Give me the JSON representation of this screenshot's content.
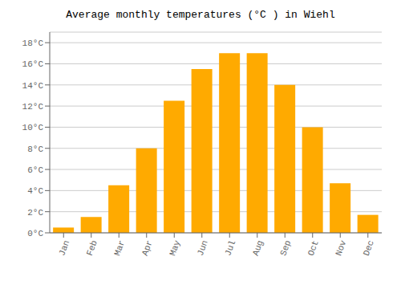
{
  "chart_data": {
    "type": "bar",
    "title": "Average monthly temperatures (°C ) in Wiehl",
    "categories": [
      "Jan",
      "Feb",
      "Mar",
      "Apr",
      "May",
      "Jun",
      "Jul",
      "Aug",
      "Sep",
      "Oct",
      "Nov",
      "Dec"
    ],
    "values": [
      0.5,
      1.5,
      4.5,
      8.0,
      12.5,
      15.5,
      17.0,
      17.0,
      14.0,
      10.0,
      4.7,
      1.7
    ],
    "color": "#FFAA00",
    "ylim": [
      0,
      19
    ],
    "yticks": [
      {
        "value": 0,
        "label": "0°C"
      },
      {
        "value": 2,
        "label": "2°C"
      },
      {
        "value": 4,
        "label": "4°C"
      },
      {
        "value": 6,
        "label": "6°C"
      },
      {
        "value": 8,
        "label": "8°C"
      },
      {
        "value": 10,
        "label": "10°C"
      },
      {
        "value": 12,
        "label": "12°C"
      },
      {
        "value": 14,
        "label": "14°C"
      },
      {
        "value": 16,
        "label": "16°C"
      },
      {
        "value": 18,
        "label": "18°C"
      }
    ],
    "grid": true
  }
}
